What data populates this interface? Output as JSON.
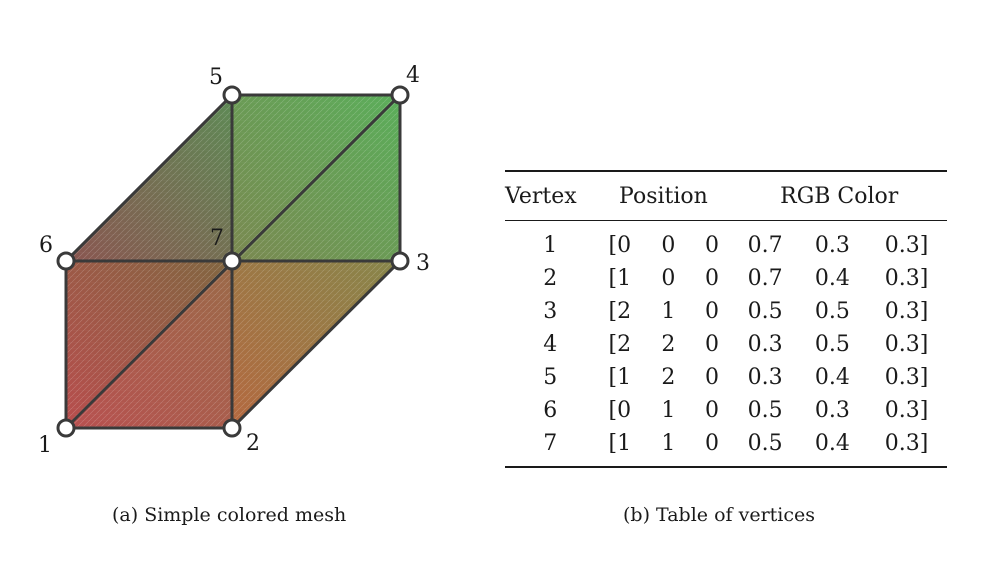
{
  "mesh": {
    "vertex_labels": [
      "1",
      "2",
      "3",
      "4",
      "5",
      "6",
      "7"
    ],
    "caption": "(a) Simple colored mesh"
  },
  "table": {
    "headers": {
      "vertex": "Vertex",
      "position": "Position",
      "color": "RGB Color"
    },
    "rows": [
      {
        "vertex": "1",
        "pos": [
          "[0",
          "0",
          "0"
        ],
        "rgb": [
          "0.7",
          "0.3",
          "0.3]"
        ]
      },
      {
        "vertex": "2",
        "pos": [
          "[1",
          "0",
          "0"
        ],
        "rgb": [
          "0.7",
          "0.4",
          "0.3]"
        ]
      },
      {
        "vertex": "3",
        "pos": [
          "[2",
          "1",
          "0"
        ],
        "rgb": [
          "0.5",
          "0.5",
          "0.3]"
        ]
      },
      {
        "vertex": "4",
        "pos": [
          "[2",
          "2",
          "0"
        ],
        "rgb": [
          "0.3",
          "0.5",
          "0.3]"
        ]
      },
      {
        "vertex": "5",
        "pos": [
          "[1",
          "2",
          "0"
        ],
        "rgb": [
          "0.3",
          "0.4",
          "0.3]"
        ]
      },
      {
        "vertex": "6",
        "pos": [
          "[0",
          "1",
          "0"
        ],
        "rgb": [
          "0.5",
          "0.3",
          "0.3]"
        ]
      },
      {
        "vertex": "7",
        "pos": [
          "[1",
          "1",
          "0"
        ],
        "rgb": [
          "0.5",
          "0.4",
          "0.3]"
        ]
      }
    ],
    "caption": "(b) Table of vertices"
  }
}
